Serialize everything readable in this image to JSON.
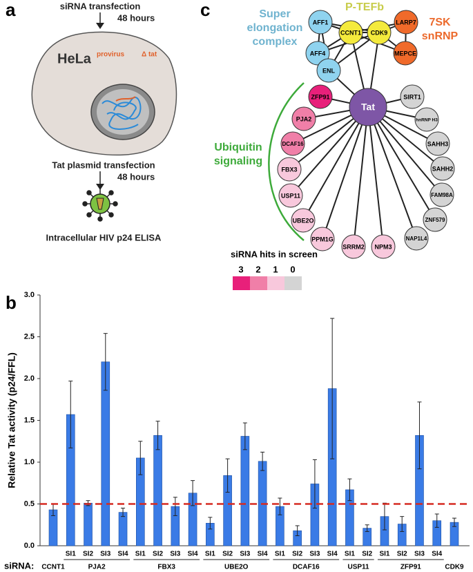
{
  "panel_a": {
    "label": "a",
    "step1": "siRNA transfection",
    "time1": "48 hours",
    "cell": "HeLa",
    "cell_note": "provirus",
    "cell_note2": "Δ tat",
    "step2": "Tat plasmid transfection",
    "time2": "48 hours",
    "readout": "Intracellular HIV p24 ELISA"
  },
  "panel_c": {
    "label": "c",
    "center": "Tat",
    "groups": [
      {
        "lines": [
          "P-TEFb"
        ],
        "color": "#c8cc4a"
      },
      {
        "lines": [
          "Super",
          "elongation",
          "complex"
        ],
        "color": "#6fb3cf"
      },
      {
        "lines": [
          "7SK",
          "snRNP"
        ],
        "color": "#ec6a2c"
      },
      {
        "lines": [
          "Ubiquitin",
          "signaling"
        ],
        "color": "#3daa3a"
      }
    ],
    "nodes": [
      {
        "label": "AFF1",
        "color": "#8fd3ef"
      },
      {
        "label": "CCNT1",
        "color": "#f4ea3c"
      },
      {
        "label": "CDK9",
        "color": "#f4ea3c"
      },
      {
        "label": "LARP7",
        "color": "#f06a2a"
      },
      {
        "label": "MEPCE",
        "color": "#f06a2a"
      },
      {
        "label": "AFF4",
        "color": "#8fd3ef"
      },
      {
        "label": "ENL",
        "color": "#8fd3ef"
      },
      {
        "label": "ZFP91",
        "color": "#e8207a"
      },
      {
        "label": "PJA2",
        "color": "#f07fa8"
      },
      {
        "label": "DCAF16",
        "color": "#f07fa8"
      },
      {
        "label": "FBX3",
        "color": "#f8c8dc"
      },
      {
        "label": "USP11",
        "color": "#f8c8dc"
      },
      {
        "label": "UBE2O",
        "color": "#f8c8dc"
      },
      {
        "label": "PPM1G",
        "color": "#f8c8dc"
      },
      {
        "label": "SRRM2",
        "color": "#f8c8dc"
      },
      {
        "label": "NPM3",
        "color": "#f8c8dc"
      },
      {
        "label": "SIRT1",
        "color": "#d4d4d4"
      },
      {
        "label": "hnRNP H3",
        "color": "#d4d4d4"
      },
      {
        "label": "SAHH3",
        "color": "#d4d4d4"
      },
      {
        "label": "SAHH2",
        "color": "#d4d4d4"
      },
      {
        "label": "FAM98A",
        "color": "#d4d4d4"
      },
      {
        "label": "ZNF579",
        "color": "#d4d4d4"
      },
      {
        "label": "NAP1L4",
        "color": "#d4d4d4"
      }
    ],
    "legend": {
      "title": "siRNA hits in screen",
      "levels": [
        {
          "label": "3",
          "color": "#e8207a"
        },
        {
          "label": "2",
          "color": "#f07fa8"
        },
        {
          "label": "1",
          "color": "#f8c8dc"
        },
        {
          "label": "0",
          "color": "#d4d4d4"
        }
      ]
    }
  },
  "chart_data": {
    "type": "bar",
    "panel_label": "b",
    "ylabel": "Relative Tat activity (p24/FFL)",
    "xlabel": "siRNA:",
    "color": "#3a7be6",
    "ylim": [
      0,
      3
    ],
    "yticks": [
      {
        "value": 0,
        "label": "0.0"
      },
      0.5,
      {
        "value": 1,
        "label": "1.0"
      },
      1.5,
      {
        "value": 2,
        "label": "2.0"
      },
      2.5,
      {
        "value": 3,
        "label": "3.0"
      }
    ],
    "threshold": 0.5,
    "threshold_color": "#d62a20",
    "groups": [
      {
        "name": "CCNT1",
        "categories": [
          null
        ],
        "values": [
          0.43
        ],
        "errors": [
          0.07
        ]
      },
      {
        "name": "PJA2",
        "categories": [
          "SI1",
          "SI2",
          "SI3",
          "SI4"
        ],
        "values": [
          1.57,
          0.51,
          2.2,
          0.4
        ],
        "errors": [
          0.4,
          0.03,
          0.34,
          0.05
        ]
      },
      {
        "name": "FBX3",
        "categories": [
          "SI1",
          "SI2",
          "SI3",
          "SI4"
        ],
        "values": [
          1.05,
          1.32,
          0.47,
          0.63
        ],
        "errors": [
          0.2,
          0.17,
          0.11,
          0.15
        ]
      },
      {
        "name": "UBE2O",
        "categories": [
          "SI1",
          "SI2",
          "SI3",
          "SI4"
        ],
        "values": [
          0.27,
          0.84,
          1.31,
          1.01
        ],
        "errors": [
          0.07,
          0.2,
          0.16,
          0.11
        ]
      },
      {
        "name": "DCAF16",
        "categories": [
          "SI1",
          "SI2",
          "SI3",
          "SI4"
        ],
        "values": [
          0.47,
          0.18,
          0.74,
          1.88
        ],
        "errors": [
          0.1,
          0.06,
          0.29,
          0.84
        ]
      },
      {
        "name": "USP11",
        "categories": [
          "SI1",
          "SI2"
        ],
        "values": [
          0.67,
          0.21
        ],
        "errors": [
          0.13,
          0.04
        ]
      },
      {
        "name": "ZFP91",
        "categories": [
          "SI1",
          "SI2",
          "SI3",
          "SI4"
        ],
        "values": [
          0.35,
          0.26,
          1.32,
          0.3
        ],
        "errors": [
          0.16,
          0.09,
          0.4,
          0.08
        ]
      },
      {
        "name": "CDK9",
        "categories": [
          null
        ],
        "values": [
          0.28
        ],
        "errors": [
          0.05
        ]
      }
    ]
  }
}
